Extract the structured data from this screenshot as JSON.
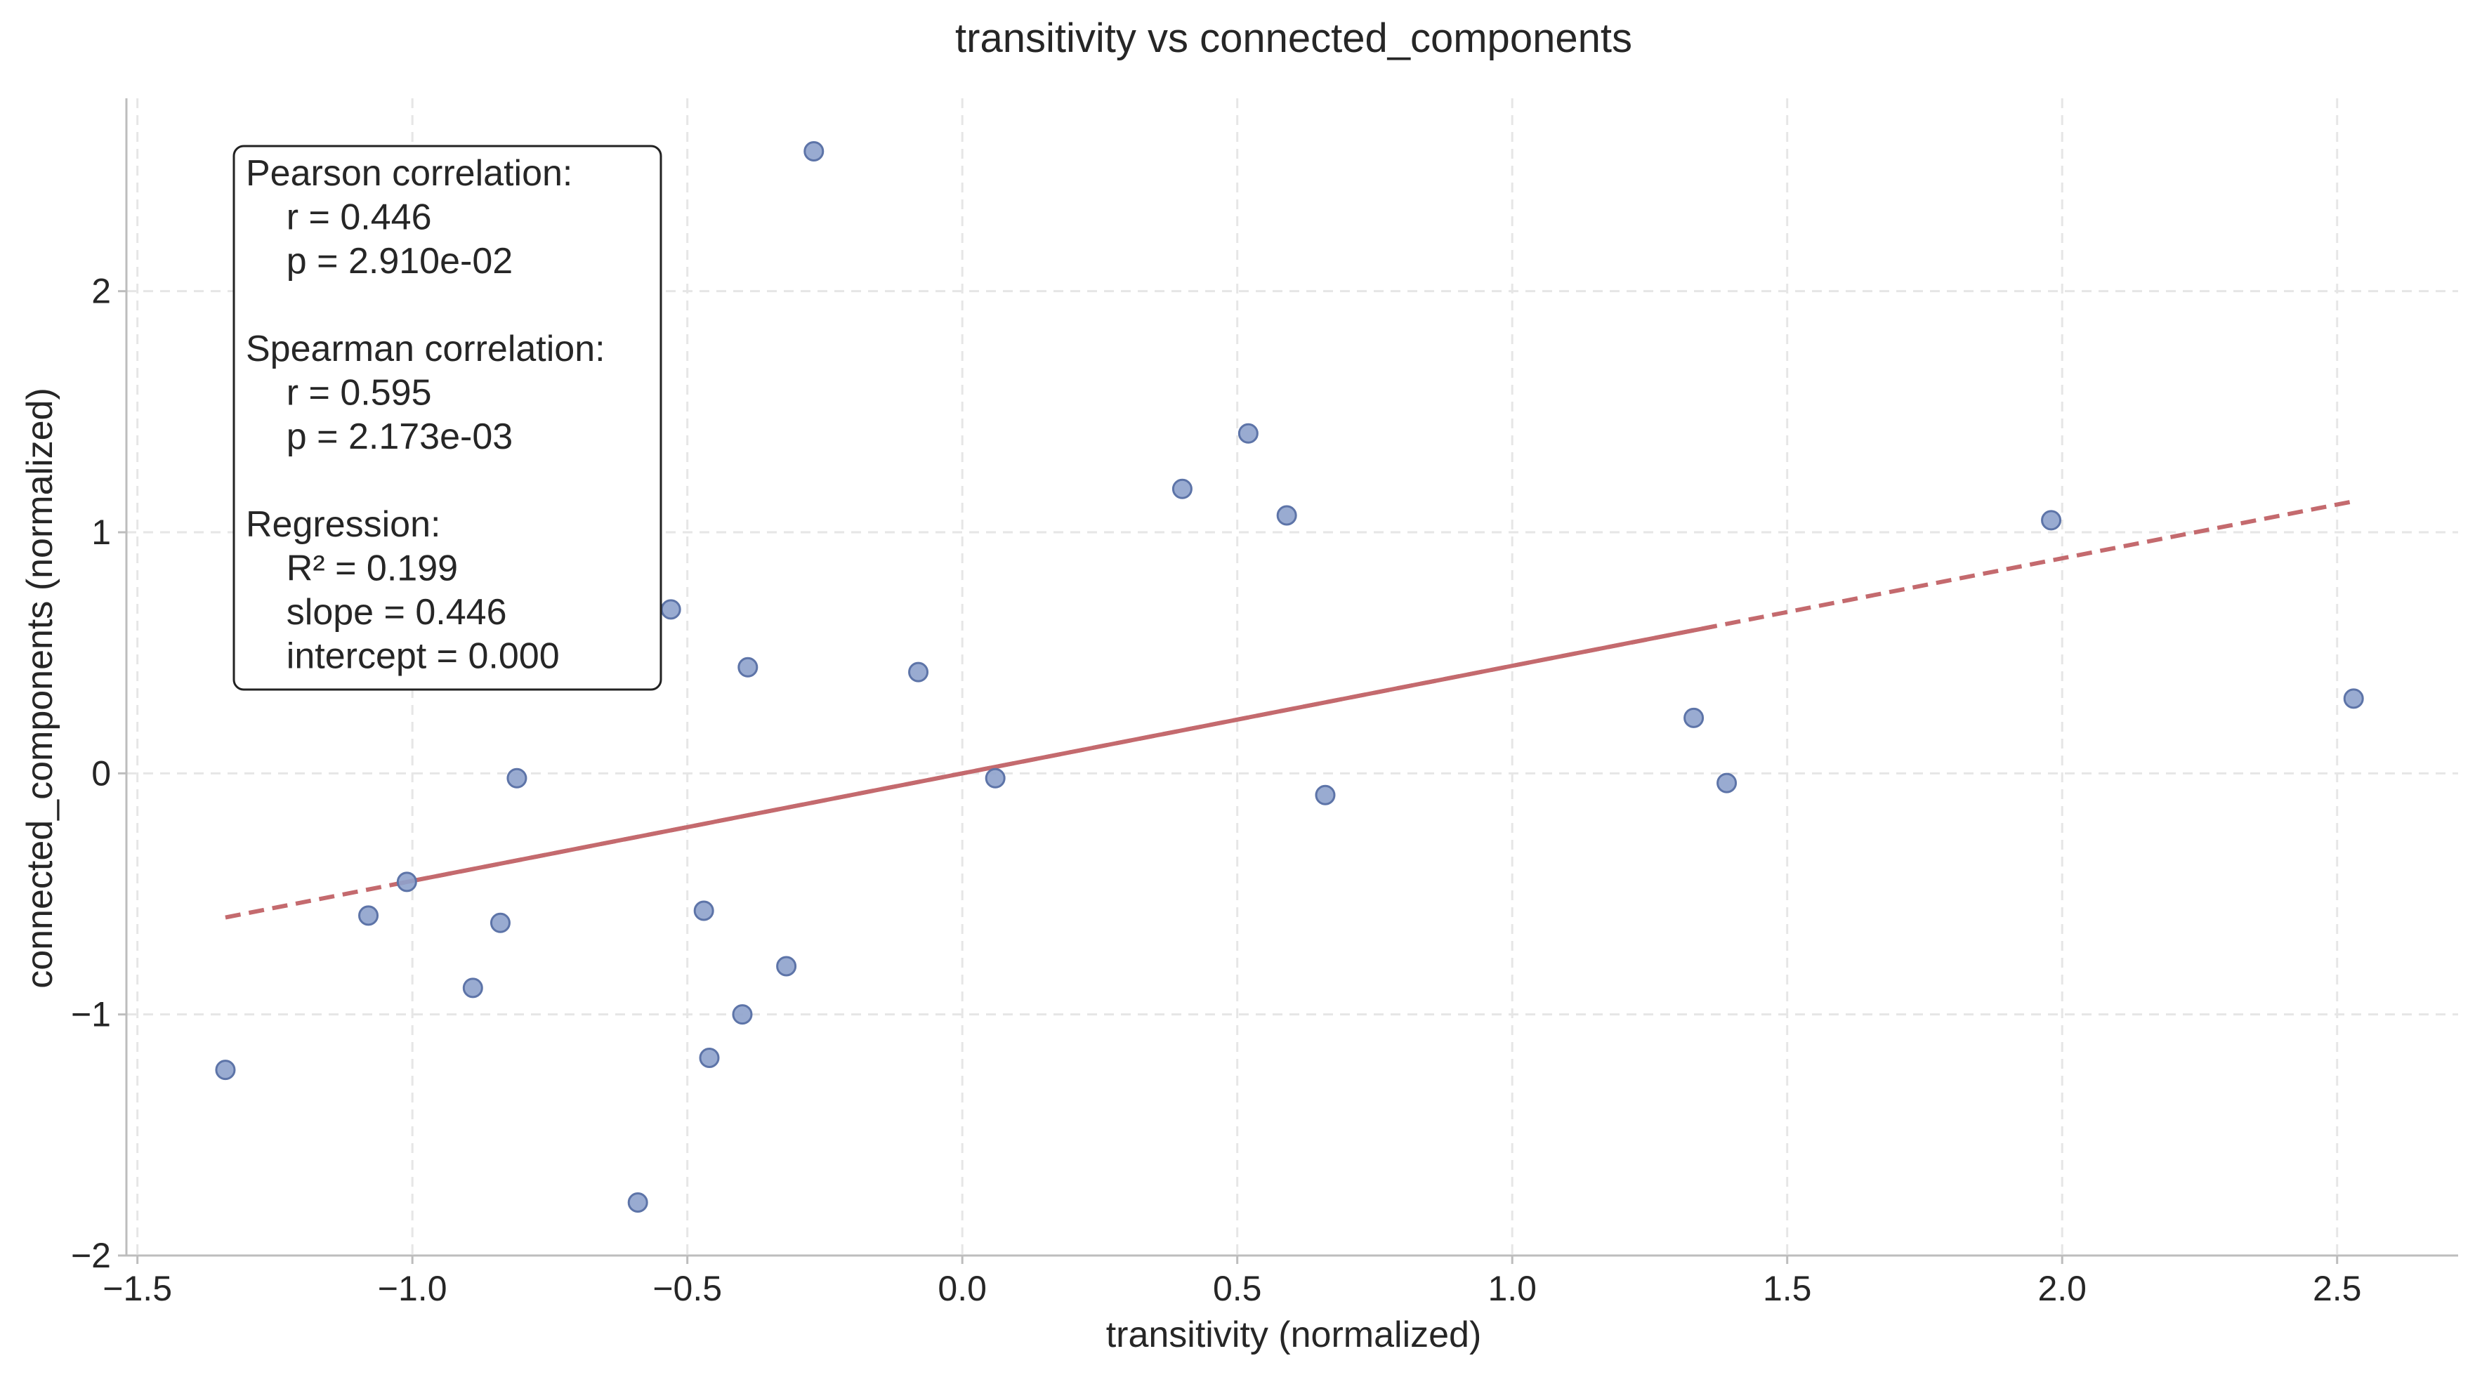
{
  "chart_data": {
    "type": "scatter",
    "title": "transitivity vs connected_components",
    "xlabel": "transitivity (normalized)",
    "ylabel": "connected_components (normalized)",
    "xlim": [
      -1.52,
      2.72
    ],
    "ylim": [
      -2.0,
      2.8
    ],
    "xticks": [
      -1.5,
      -1.0,
      -0.5,
      0.0,
      0.5,
      1.0,
      1.5,
      2.0,
      2.5
    ],
    "xtick_labels": [
      "−1.5",
      "−1.0",
      "−0.5",
      "0.0",
      "0.5",
      "1.0",
      "1.5",
      "2.0",
      "2.5"
    ],
    "yticks": [
      -2,
      -1,
      0,
      1,
      2
    ],
    "ytick_labels": [
      "−2",
      "−1",
      "0",
      "1",
      "2"
    ],
    "grid": true,
    "points": [
      {
        "x": -1.34,
        "y": -1.23
      },
      {
        "x": -1.08,
        "y": -0.59
      },
      {
        "x": -1.01,
        "y": -0.45
      },
      {
        "x": -0.89,
        "y": -0.89
      },
      {
        "x": -0.84,
        "y": -0.62
      },
      {
        "x": -0.81,
        "y": -0.02
      },
      {
        "x": -0.59,
        "y": -1.78
      },
      {
        "x": -0.53,
        "y": 0.68
      },
      {
        "x": -0.47,
        "y": -0.57
      },
      {
        "x": -0.46,
        "y": -1.18
      },
      {
        "x": -0.39,
        "y": 0.44
      },
      {
        "x": -0.4,
        "y": -1.0
      },
      {
        "x": -0.32,
        "y": -0.8
      },
      {
        "x": -0.27,
        "y": 2.58
      },
      {
        "x": -0.08,
        "y": 0.42
      },
      {
        "x": 0.06,
        "y": -0.02
      },
      {
        "x": 0.4,
        "y": 1.18
      },
      {
        "x": 0.52,
        "y": 1.41
      },
      {
        "x": 0.59,
        "y": 1.07
      },
      {
        "x": 0.66,
        "y": -0.09
      },
      {
        "x": 1.33,
        "y": 0.23
      },
      {
        "x": 1.39,
        "y": -0.04
      },
      {
        "x": 1.98,
        "y": 1.05
      },
      {
        "x": 2.53,
        "y": 0.31
      }
    ],
    "point_color": "#8ea2cc",
    "point_edge_color": "#5d74a8",
    "regression": {
      "slope": 0.446,
      "intercept": 0.0,
      "x_range": [
        -1.34,
        2.53
      ],
      "color": "#c46a6e"
    },
    "stats_box": [
      "Pearson correlation:",
      "  r = 0.446",
      "  p = 2.910e-02",
      "",
      "Spearman correlation:",
      "  r = 0.595",
      "  p = 2.173e-03",
      "",
      "Regression:",
      "  R² = 0.199",
      "  slope = 0.446",
      "  intercept = 0.000"
    ]
  }
}
